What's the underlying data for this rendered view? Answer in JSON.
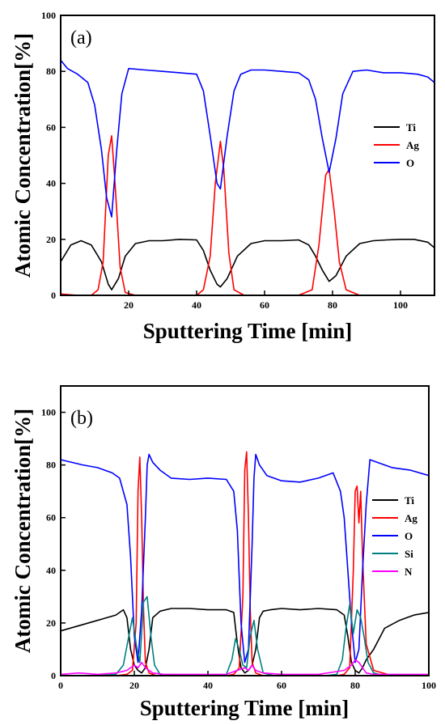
{
  "chart_data": [
    {
      "type": "line",
      "panel_label": "(a)",
      "xlabel": "Sputtering Time [min]",
      "ylabel": "Atomic Concentration[%]",
      "xlim": [
        0,
        110
      ],
      "ylim": [
        0,
        100
      ],
      "xticks": [
        20,
        40,
        60,
        80,
        100
      ],
      "yticks": [
        0,
        20,
        40,
        60,
        80,
        100
      ],
      "grid": false,
      "legend": "right",
      "series": [
        {
          "name": "Ti",
          "color": "#000000",
          "x": [
            0,
            3,
            6,
            9,
            12,
            14,
            15,
            17,
            19,
            22,
            26,
            30,
            35,
            40,
            42,
            44,
            46,
            47,
            49,
            52,
            56,
            60,
            65,
            70,
            73,
            75,
            77,
            79,
            81,
            84,
            88,
            92,
            96,
            100,
            104,
            108,
            110
          ],
          "y": [
            12,
            18,
            19.5,
            18,
            12,
            4,
            2,
            6,
            14,
            18.5,
            19.5,
            19.5,
            20,
            19.8,
            16,
            9,
            4,
            3,
            6,
            14,
            18.5,
            19.5,
            19.5,
            19.8,
            18,
            14,
            9,
            5,
            7,
            14,
            18.5,
            19.5,
            19.8,
            20,
            20,
            19,
            17
          ]
        },
        {
          "name": "Ag",
          "color": "#ff0000",
          "x": [
            0,
            5,
            9,
            11,
            12.5,
            14,
            15,
            16,
            17.5,
            19,
            22,
            30,
            40,
            42,
            44,
            45.5,
            47,
            48,
            49.5,
            51,
            54,
            60,
            70,
            74,
            76,
            78,
            79,
            80.5,
            82,
            84,
            88,
            100,
            110
          ],
          "y": [
            0.5,
            0,
            0,
            2,
            12,
            50,
            57,
            40,
            10,
            1,
            0,
            0,
            0,
            2,
            14,
            40,
            55,
            45,
            15,
            2,
            0,
            0,
            0,
            2,
            18,
            43,
            45,
            30,
            12,
            2,
            0,
            0,
            0
          ]
        },
        {
          "name": "O",
          "color": "#0000ff",
          "x": [
            0,
            2,
            5,
            8,
            10,
            12,
            13.5,
            15,
            16.5,
            18,
            20,
            25,
            30,
            35,
            40,
            42,
            44,
            46,
            47,
            49,
            51,
            53,
            56,
            60,
            65,
            70,
            73,
            75,
            77,
            79,
            81,
            83,
            86,
            90,
            95,
            100,
            105,
            108,
            110
          ],
          "y": [
            84,
            81,
            79,
            76,
            68,
            52,
            35,
            28,
            52,
            72,
            81,
            80.5,
            80,
            79.5,
            79,
            73,
            57,
            40,
            38,
            57,
            73,
            79,
            80.5,
            80.5,
            80,
            79.5,
            77,
            70,
            56,
            44,
            56,
            72,
            80,
            80.5,
            79.5,
            79.5,
            79,
            78,
            76
          ]
        }
      ]
    },
    {
      "type": "line",
      "panel_label": "(b)",
      "xlabel": "Sputtering Time [min]",
      "ylabel": "Atomic Concentration[%]",
      "xlim": [
        0,
        100
      ],
      "ylim": [
        0,
        110
      ],
      "xticks": [
        0,
        20,
        40,
        60,
        80,
        100
      ],
      "yticks": [
        0,
        20,
        40,
        60,
        80,
        100
      ],
      "grid": false,
      "legend": "right",
      "series": [
        {
          "name": "Ti",
          "color": "#000000",
          "x": [
            0,
            5,
            10,
            15,
            17,
            18,
            19,
            20,
            21,
            22,
            23,
            24,
            25,
            27,
            30,
            35,
            40,
            45,
            47,
            48,
            49,
            50,
            51,
            52,
            53,
            54,
            55,
            57,
            60,
            65,
            70,
            75,
            77,
            78,
            79,
            80,
            81,
            82,
            83,
            85,
            88,
            92,
            96,
            100
          ],
          "y": [
            17,
            19,
            21,
            23,
            25,
            22,
            10,
            4,
            2,
            1,
            3,
            10,
            22,
            24.5,
            25.5,
            25.5,
            25,
            25,
            24,
            12,
            3,
            1,
            2,
            4,
            10,
            22,
            24.5,
            25,
            25.5,
            25,
            25.5,
            25,
            23,
            15,
            5,
            2,
            1,
            3,
            6,
            10,
            18,
            21,
            23,
            24
          ]
        },
        {
          "name": "Ag",
          "color": "#ff0000",
          "x": [
            0,
            15,
            18,
            19.5,
            20.5,
            21,
            21.5,
            22,
            22.5,
            23,
            24,
            26,
            30,
            45,
            47,
            48.5,
            49.5,
            50,
            50.5,
            51,
            51.5,
            52,
            53,
            55,
            60,
            75,
            77,
            78.5,
            79.5,
            80,
            80.5,
            81,
            81.5,
            82,
            83,
            85,
            90,
            100
          ],
          "y": [
            0,
            0,
            0.5,
            2,
            20,
            70,
            83,
            60,
            25,
            5,
            1,
            0,
            0,
            0,
            0.5,
            3,
            30,
            78,
            85,
            60,
            25,
            5,
            1,
            0,
            0,
            0,
            0.5,
            3,
            40,
            70,
            72,
            58,
            70,
            45,
            12,
            2,
            0,
            0
          ]
        },
        {
          "name": "O",
          "color": "#0000ff",
          "x": [
            0,
            3,
            6,
            10,
            14,
            16,
            18,
            19,
            20,
            21,
            22,
            23,
            23.5,
            24,
            25,
            27,
            30,
            35,
            40,
            45,
            47,
            48,
            49,
            50,
            51,
            52,
            52.5,
            53,
            54,
            56,
            60,
            65,
            70,
            74,
            76,
            77,
            78,
            79,
            80,
            81,
            82,
            83,
            84,
            86,
            90,
            95,
            100
          ],
          "y": [
            82,
            81,
            80,
            79,
            77,
            75,
            65,
            45,
            15,
            5,
            25,
            60,
            80,
            84,
            81,
            78,
            75,
            74.5,
            75,
            74.5,
            70,
            55,
            20,
            5,
            10,
            50,
            75,
            84,
            80,
            76,
            74,
            73.5,
            75,
            77,
            70,
            60,
            40,
            20,
            5,
            10,
            40,
            65,
            82,
            81,
            79,
            78,
            76
          ]
        },
        {
          "name": "Si",
          "color": "#008080",
          "x": [
            0,
            10,
            15,
            17,
            18.5,
            19.5,
            20.5,
            21.5,
            22.5,
            23.5,
            24.5,
            25.5,
            27,
            30,
            42,
            45,
            46.5,
            47.5,
            48.5,
            49.5,
            50.5,
            51.5,
            52.5,
            53.5,
            55,
            58,
            72,
            75,
            76.5,
            77.5,
            78.5,
            79.5,
            80.5,
            81.5,
            82.5,
            83.5,
            85,
            88,
            100
          ],
          "y": [
            0,
            0,
            0.5,
            4,
            15,
            22,
            12,
            5,
            28,
            30,
            15,
            4,
            0.5,
            0,
            0,
            0.5,
            6,
            14,
            10,
            4,
            3,
            15,
            21,
            10,
            1,
            0,
            0,
            0.5,
            6,
            18,
            27,
            16,
            25,
            22,
            14,
            5,
            1,
            0,
            0
          ]
        },
        {
          "name": "N",
          "color": "#ff00ff",
          "x": [
            0,
            5,
            10,
            15,
            18,
            20,
            21,
            22,
            23,
            25,
            28,
            35,
            45,
            48,
            50,
            51,
            52,
            53,
            55,
            60,
            70,
            77,
            79,
            80,
            81,
            82,
            83,
            85,
            90,
            100
          ],
          "y": [
            0.5,
            1,
            0.5,
            1,
            2,
            4,
            3,
            5,
            3,
            1,
            0.5,
            0.5,
            0.5,
            2,
            3,
            2,
            4,
            2,
            1,
            0.5,
            0.5,
            2,
            4,
            6,
            5,
            3,
            1,
            0.5,
            0.5,
            0.5
          ]
        }
      ]
    }
  ]
}
